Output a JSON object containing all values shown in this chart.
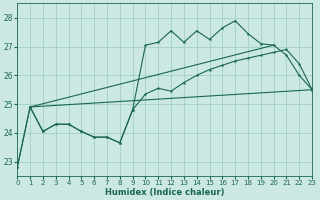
{
  "xlabel": "Humidex (Indice chaleur)",
  "background_color": "#cce8e2",
  "grid_color": "#99ccbe",
  "line_color": "#1a6655",
  "xlim": [
    0,
    23
  ],
  "ylim": [
    22.5,
    28.5
  ],
  "yticks": [
    23,
    24,
    25,
    26,
    27,
    28
  ],
  "xticks": [
    0,
    1,
    2,
    3,
    4,
    5,
    6,
    7,
    8,
    9,
    10,
    11,
    12,
    13,
    14,
    15,
    16,
    17,
    18,
    19,
    20,
    21,
    22,
    23
  ],
  "line1_x": [
    0,
    1,
    2,
    3,
    4,
    5,
    6,
    7,
    8,
    9,
    10,
    11,
    12,
    13,
    14,
    15,
    16,
    17,
    18,
    19,
    20,
    21,
    22,
    23
  ],
  "line1_y": [
    22.8,
    24.9,
    24.05,
    24.3,
    24.3,
    24.05,
    23.85,
    23.85,
    23.65,
    24.8,
    27.05,
    27.15,
    27.55,
    27.15,
    27.55,
    27.25,
    27.65,
    27.9,
    27.45,
    27.1,
    27.05,
    26.7,
    26.0,
    25.5
  ],
  "line2_x": [
    0,
    1,
    2,
    3,
    4,
    5,
    6,
    7,
    8,
    9,
    10,
    11,
    12,
    13,
    14,
    15,
    16,
    17,
    18,
    19,
    20,
    21,
    22,
    23
  ],
  "line2_y": [
    22.8,
    24.9,
    24.05,
    24.3,
    24.3,
    24.05,
    23.85,
    23.85,
    23.65,
    24.8,
    25.35,
    25.55,
    25.45,
    25.75,
    26.0,
    26.2,
    26.35,
    26.5,
    26.6,
    26.7,
    26.8,
    26.9,
    26.4,
    25.5
  ],
  "line3_x": [
    1,
    23
  ],
  "line3_y": [
    24.9,
    25.5
  ],
  "line4_x": [
    1,
    20
  ],
  "line4_y": [
    24.9,
    27.05
  ]
}
